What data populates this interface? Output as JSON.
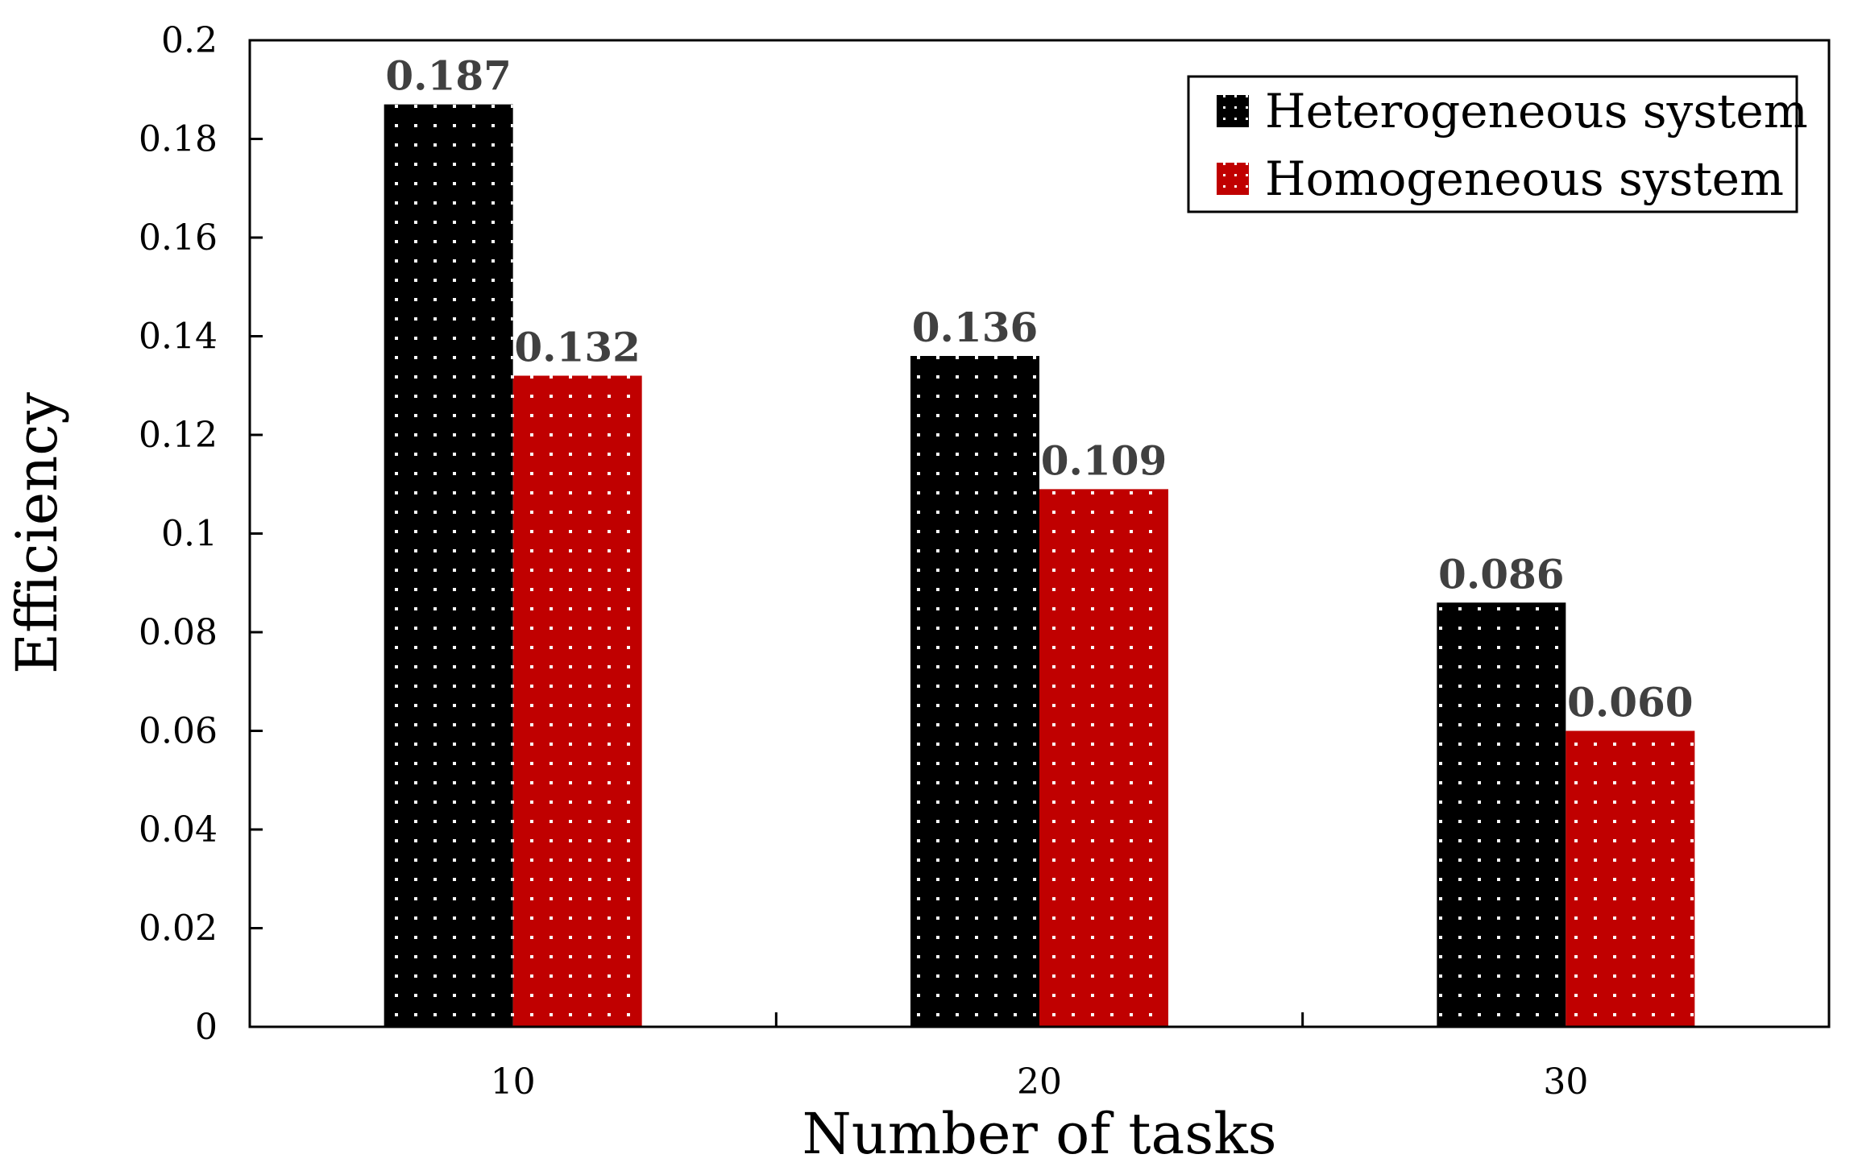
{
  "chart_data": {
    "type": "bar",
    "categories": [
      "10",
      "20",
      "30"
    ],
    "xlabel": "Number of tasks",
    "ylabel": "Efficiency",
    "ylim": [
      0,
      0.2
    ],
    "yticks": [
      "0",
      "0.02",
      "0.04",
      "0.06",
      "0.08",
      "0.1",
      "0.12",
      "0.14",
      "0.16",
      "0.18",
      "0.2"
    ],
    "legend_position": "top-right",
    "grid": false,
    "series": [
      {
        "name": "Heterogeneous system",
        "color": "#000000",
        "values": [
          0.187,
          0.136,
          0.086
        ],
        "labels": [
          "0.187",
          "0.136",
          "0.086"
        ]
      },
      {
        "name": "Homogeneous system",
        "color": "#c00000",
        "values": [
          0.132,
          0.109,
          0.06
        ],
        "labels": [
          "0.132",
          "0.109",
          "0.060"
        ]
      }
    ]
  }
}
